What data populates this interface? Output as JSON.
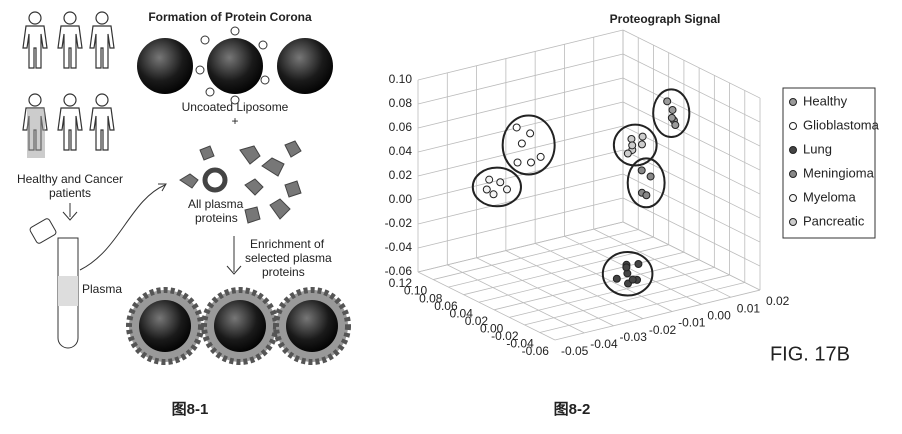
{
  "figure_a": {
    "title": "Formation of Protein Corona",
    "liposome_label": "Uncoated Liposome",
    "plus": "+",
    "patients_label": [
      "Healthy and Cancer",
      "patients"
    ],
    "plasma_label": "Plasma",
    "proteins_label": [
      "All plasma",
      "proteins"
    ],
    "enrichment_label": [
      "Enrichment of",
      "selected plasma",
      "proteins"
    ],
    "caption": "图8-1"
  },
  "chart_data": {
    "type": "scatter3d",
    "title": "Proteograph Signal",
    "xlim": [
      -0.06,
      0.12
    ],
    "xticks": [
      0.12,
      {
        "value": 0.1,
        "label": "0.10"
      },
      0.08,
      0.06,
      0.04,
      0.02,
      {
        "value": 0,
        "label": "0.00"
      },
      -0.02,
      -0.04,
      -0.06
    ],
    "ylim": [
      -0.05,
      0.02
    ],
    "yticks": [
      -0.05,
      -0.04,
      -0.03,
      -0.02,
      -0.01,
      {
        "value": 0,
        "label": "0.00"
      },
      0.01,
      0.02
    ],
    "zlim": [
      -0.06,
      0.1
    ],
    "zticks": [
      {
        "value": 0.1,
        "label": "0.10"
      },
      0.08,
      0.06,
      0.04,
      0.02,
      {
        "value": 0,
        "label": "0.00"
      },
      -0.02,
      -0.04,
      -0.06
    ],
    "grid": true,
    "legend": "right",
    "series": [
      {
        "name": "Healthy",
        "color": "#9a9a9a",
        "x": [
          -0.015,
          -0.02,
          -0.025,
          -0.018,
          -0.022
        ],
        "y": [
          0.0,
          0.001,
          -0.001,
          0.002,
          0.0
        ],
        "z": [
          0.095,
          0.08,
          0.085,
          0.075,
          0.09
        ]
      },
      {
        "name": "Glioblastoma",
        "color": "#ffffff",
        "x": [
          0.025,
          0.015,
          0.01,
          0.02,
          0.005,
          0.022
        ],
        "y": [
          -0.041,
          -0.039,
          -0.04,
          -0.042,
          -0.038,
          -0.04
        ],
        "z": [
          0.085,
          0.082,
          0.06,
          0.058,
          0.065,
          0.072
        ]
      },
      {
        "name": "Lung",
        "color": "#444444",
        "x": [
          0.0,
          -0.005,
          -0.01,
          0.005,
          -0.008,
          -0.002,
          0.004,
          -0.012
        ],
        "y": [
          -0.01,
          -0.011,
          -0.009,
          -0.012,
          -0.008,
          -0.01,
          -0.009,
          -0.011
        ],
        "z": [
          -0.04,
          -0.045,
          -0.05,
          -0.052,
          -0.038,
          -0.055,
          -0.044,
          -0.048
        ]
      },
      {
        "name": "Meningioma",
        "color": "#888888",
        "x": [
          -0.02,
          -0.028,
          -0.024,
          -0.03
        ],
        "y": [
          -0.01,
          -0.012,
          -0.008,
          -0.011
        ],
        "z": [
          0.045,
          0.03,
          0.04,
          0.028
        ]
      },
      {
        "name": "Myeloma",
        "color": "#f4f4f4",
        "x": [
          0.045,
          0.035,
          0.04,
          0.03,
          0.038
        ],
        "y": [
          -0.046,
          -0.044,
          -0.045,
          -0.043,
          -0.047
        ],
        "z": [
          0.03,
          0.038,
          0.027,
          0.033,
          0.041
        ]
      },
      {
        "name": "Pancreatic",
        "color": "#cccccc",
        "x": [
          -0.045,
          -0.05,
          -0.055,
          -0.048,
          -0.052,
          -0.046
        ],
        "y": [
          -0.02,
          -0.021,
          -0.019,
          -0.022,
          -0.018,
          -0.02
        ],
        "z": [
          0.085,
          0.078,
          0.083,
          0.075,
          0.088,
          0.08
        ]
      }
    ]
  },
  "fig_label": "FIG. 17B",
  "caption": "图8-2"
}
